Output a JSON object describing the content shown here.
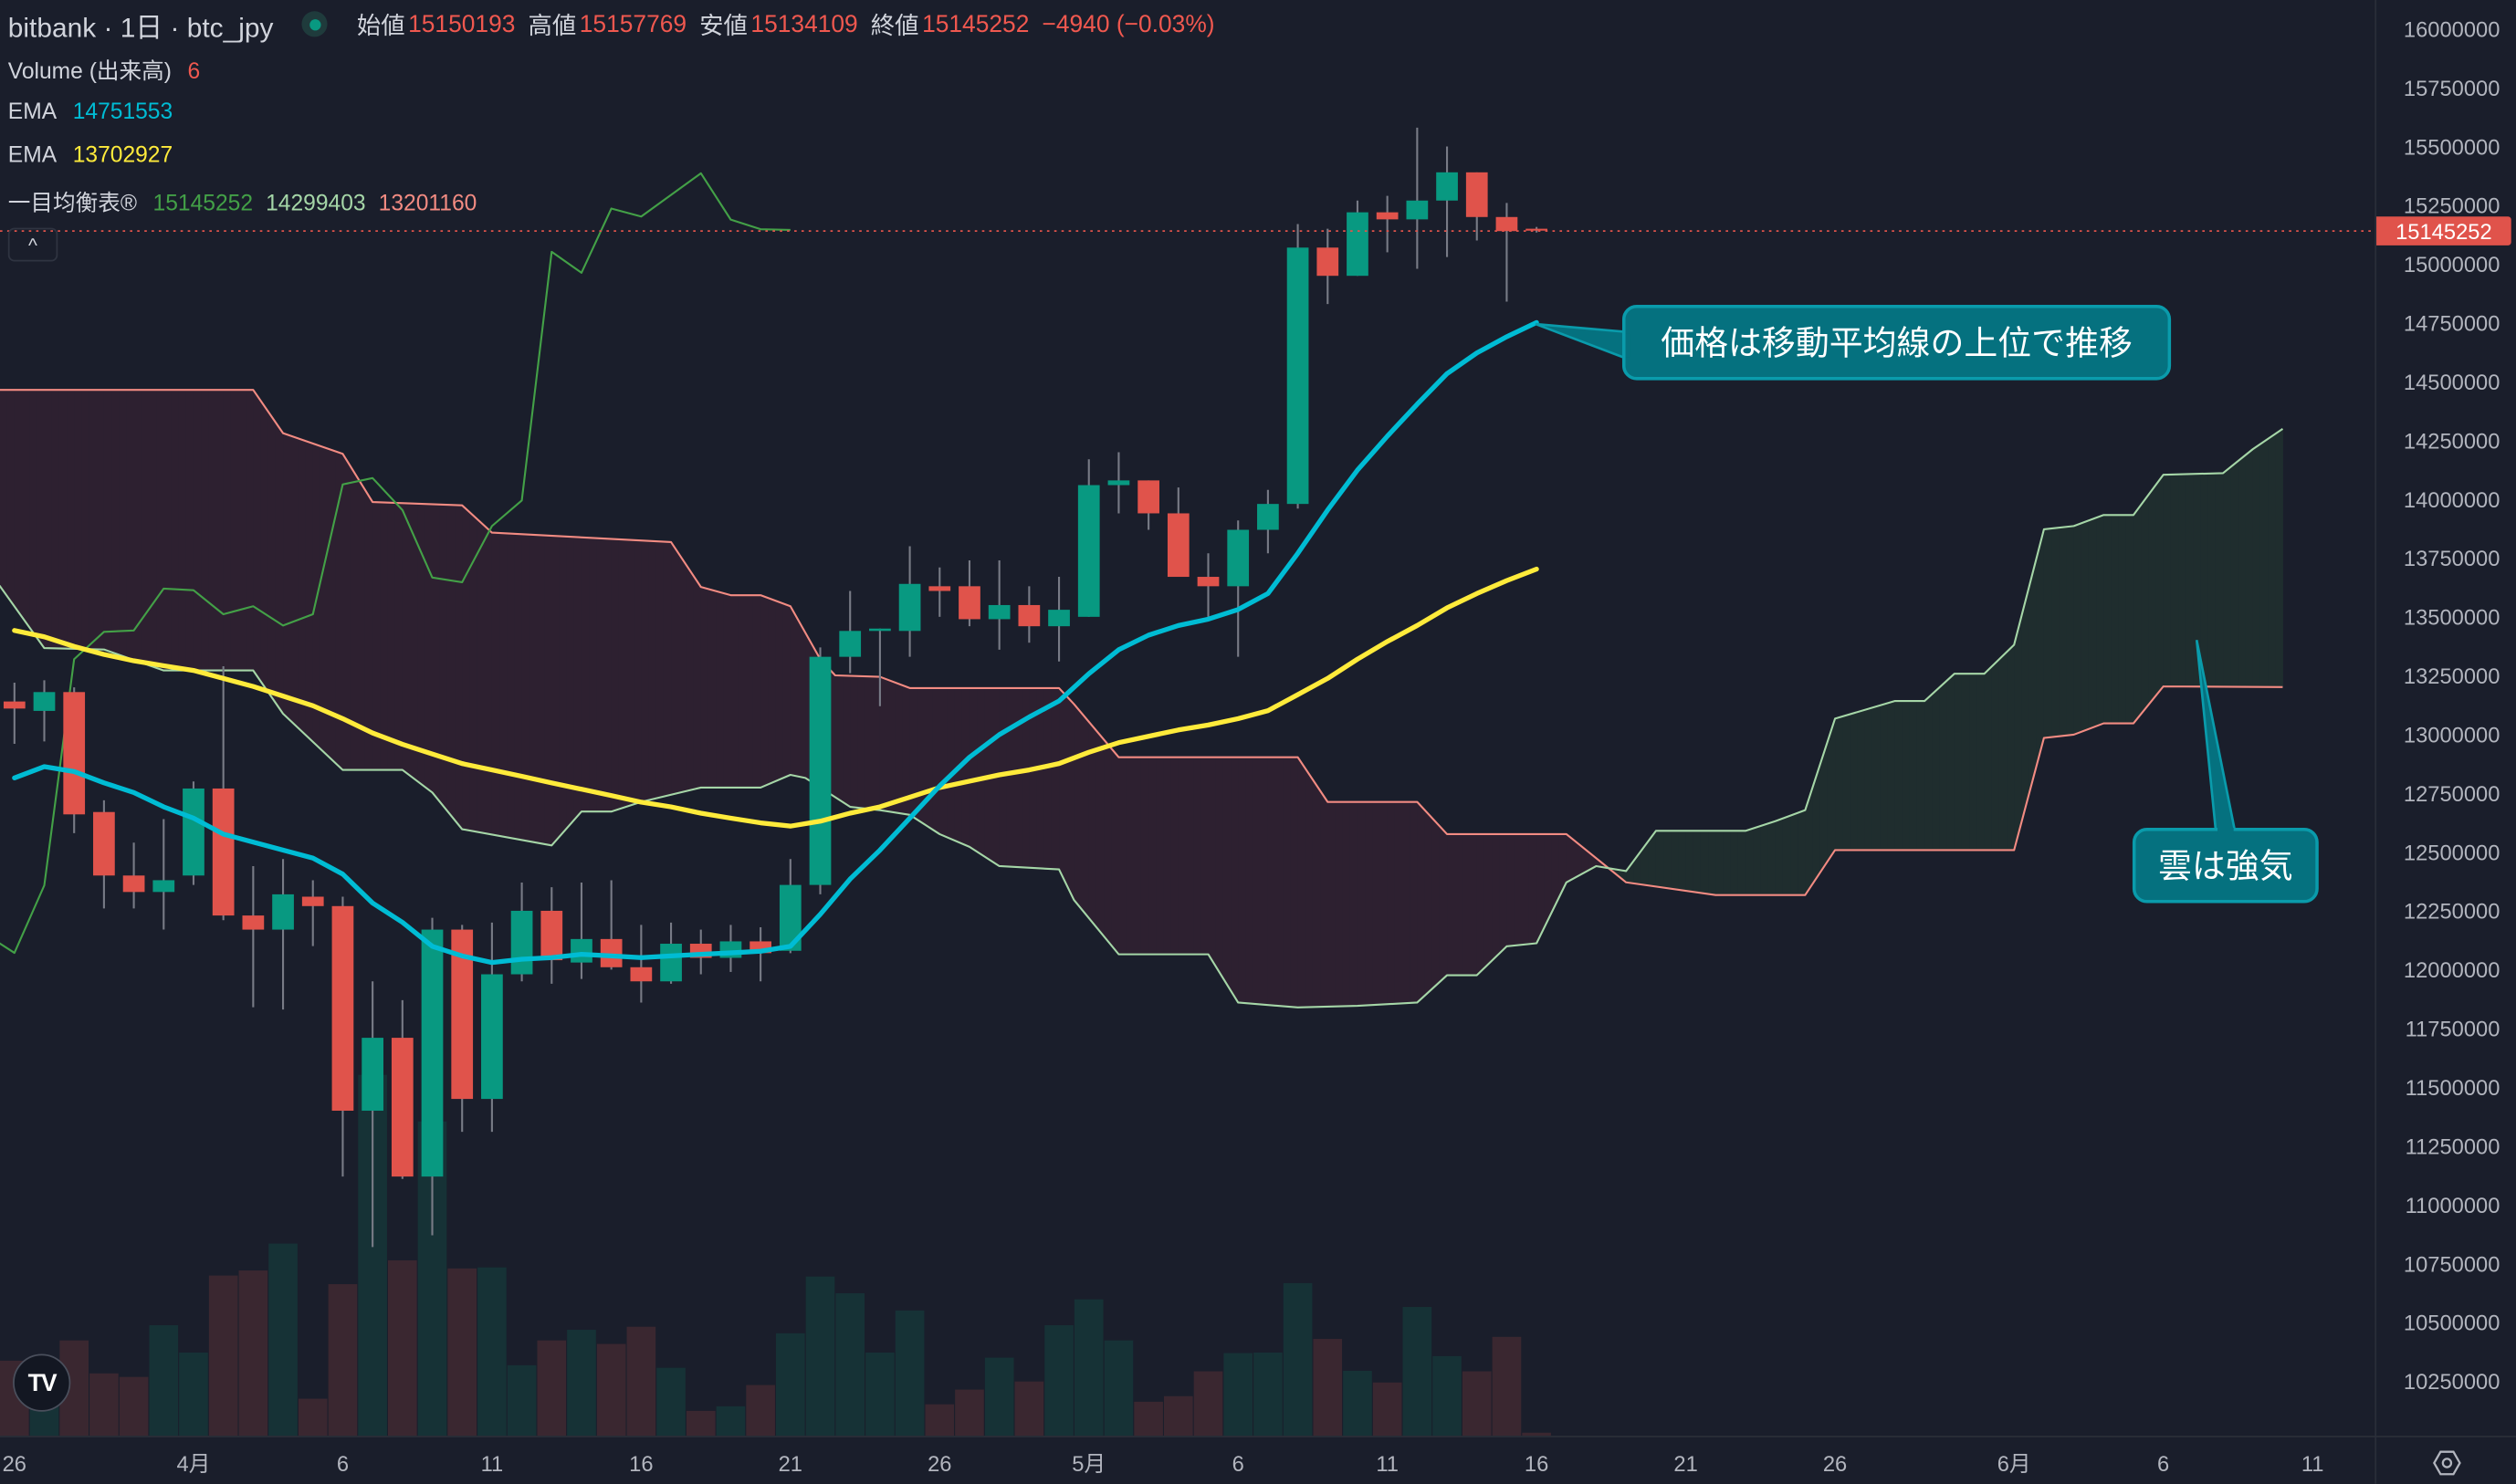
{
  "header": {
    "symbol_title": "bitbank · 1日 · btc_jpy",
    "open_label": "始値",
    "open_value": "15150193",
    "high_label": "高値",
    "high_value": "15157769",
    "low_label": "安値",
    "low_value": "15134109",
    "close_label": "終値",
    "close_value": "15145252",
    "change": "−4940 (−0.03%)"
  },
  "legend": {
    "volume_label": "Volume (出来高)",
    "volume_value": "6",
    "ema1_label": "EMA",
    "ema1_value": "14751553",
    "ema2_label": "EMA",
    "ema2_value": "13702927",
    "ichimoku_label": "一目均衡表®",
    "ichimoku_lagging": "15145252",
    "ichimoku_span_a": "14299403",
    "ichimoku_span_b": "13201160"
  },
  "controls": {
    "collapse_icon": "^",
    "logo_text": "TV"
  },
  "price_tag": "15145252",
  "annotations": {
    "ema_callout": "価格は移動平均線の上位で推移",
    "cloud_callout": "雲は強気"
  },
  "colors": {
    "up": "#089981",
    "down": "#e0534b",
    "wick": "#787b86",
    "vol_up": "#163236",
    "vol_down": "#3a2730",
    "ema_fast": "#00bcd4",
    "ema_slow": "#ffeb3b",
    "span_a": "#a5d6a7",
    "span_b": "#f28b82",
    "lagging": "#43a047",
    "cloud_bear": "#2d2030",
    "cloud_bull": "#1f2d2e",
    "callout_fill": "#05717f",
    "callout_border": "#0a9bab"
  },
  "chart_data": {
    "type": "candlestick",
    "title": "bitbank · 1日 · btc_jpy",
    "ylim": [
      10100000,
      16100000
    ],
    "y_ticks": [
      16000000,
      15750000,
      15500000,
      15250000,
      15000000,
      14750000,
      14500000,
      14250000,
      14000000,
      13750000,
      13500000,
      13250000,
      13000000,
      12750000,
      12500000,
      12250000,
      12000000,
      11750000,
      11500000,
      11250000,
      11000000,
      10750000,
      10500000,
      10250000
    ],
    "x_ticks": [
      {
        "label": "26",
        "day": 0
      },
      {
        "label": "4月",
        "day": 6
      },
      {
        "label": "6",
        "day": 11
      },
      {
        "label": "11",
        "day": 16
      },
      {
        "label": "16",
        "day": 21
      },
      {
        "label": "21",
        "day": 26
      },
      {
        "label": "26",
        "day": 31
      },
      {
        "label": "5月",
        "day": 36
      },
      {
        "label": "6",
        "day": 41
      },
      {
        "label": "11",
        "day": 46
      },
      {
        "label": "16",
        "day": 51
      },
      {
        "label": "21",
        "day": 56
      },
      {
        "label": "26",
        "day": 61
      },
      {
        "label": "6月",
        "day": 67
      },
      {
        "label": "6",
        "day": 72
      },
      {
        "label": "11",
        "day": 77
      }
    ],
    "ohlc_columns": [
      "open",
      "high",
      "low",
      "close"
    ],
    "candles": [
      [
        13140000,
        13220000,
        12960000,
        13110000
      ],
      [
        13100000,
        13230000,
        12970000,
        13180000
      ],
      [
        13180000,
        13200000,
        12580000,
        12660000
      ],
      [
        12670000,
        12720000,
        12260000,
        12400000
      ],
      [
        12400000,
        12540000,
        12260000,
        12330000
      ],
      [
        12330000,
        12640000,
        12170000,
        12380000
      ],
      [
        12400000,
        12800000,
        12360000,
        12770000
      ],
      [
        12770000,
        13290000,
        12210000,
        12230000
      ],
      [
        12230000,
        12440000,
        11840000,
        12170000
      ],
      [
        12170000,
        12470000,
        11830000,
        12320000
      ],
      [
        12310000,
        12380000,
        12100000,
        12270000
      ],
      [
        12270000,
        12310000,
        11120000,
        11400000
      ],
      [
        11400000,
        11950000,
        10820000,
        11710000
      ],
      [
        11710000,
        11870000,
        11110000,
        11120000
      ],
      [
        11120000,
        12220000,
        10870000,
        12170000
      ],
      [
        12170000,
        12190000,
        11310000,
        11450000
      ],
      [
        11450000,
        12200000,
        11310000,
        11980000
      ],
      [
        11980000,
        12370000,
        11950000,
        12250000
      ],
      [
        12250000,
        12350000,
        11940000,
        12040000
      ],
      [
        12030000,
        12370000,
        11960000,
        12130000
      ],
      [
        12130000,
        12380000,
        12000000,
        12010000
      ],
      [
        12010000,
        12190000,
        11860000,
        11950000
      ],
      [
        11950000,
        12200000,
        11940000,
        12110000
      ],
      [
        12110000,
        12170000,
        11980000,
        12050000
      ],
      [
        12050000,
        12190000,
        11990000,
        12120000
      ],
      [
        12120000,
        12180000,
        11950000,
        12070000
      ],
      [
        12080000,
        12470000,
        12070000,
        12360000
      ],
      [
        12360000,
        13370000,
        12320000,
        13330000
      ],
      [
        13330000,
        13610000,
        13260000,
        13440000
      ],
      [
        13440000,
        13450000,
        13120000,
        13450000
      ],
      [
        13440000,
        13800000,
        13330000,
        13640000
      ],
      [
        13630000,
        13710000,
        13500000,
        13610000
      ],
      [
        13630000,
        13740000,
        13460000,
        13490000
      ],
      [
        13490000,
        13740000,
        13360000,
        13550000
      ],
      [
        13550000,
        13630000,
        13390000,
        13460000
      ],
      [
        13460000,
        13670000,
        13310000,
        13530000
      ],
      [
        13500000,
        14170000,
        13500000,
        14060000
      ],
      [
        14060000,
        14200000,
        13940000,
        14080000
      ],
      [
        14080000,
        14080000,
        13870000,
        13940000
      ],
      [
        13940000,
        14050000,
        13670000,
        13670000
      ],
      [
        13670000,
        13770000,
        13500000,
        13630000
      ],
      [
        13630000,
        13910000,
        13330000,
        13870000
      ],
      [
        13870000,
        14040000,
        13770000,
        13980000
      ],
      [
        13980000,
        15170000,
        13960000,
        15070000
      ],
      [
        15070000,
        15150000,
        14830000,
        14950000
      ],
      [
        14950000,
        15270000,
        14950000,
        15220000
      ],
      [
        15220000,
        15290000,
        15050000,
        15190000
      ],
      [
        15190000,
        15580000,
        14980000,
        15270000
      ],
      [
        15270000,
        15500000,
        15030000,
        15390000
      ],
      [
        15390000,
        15390000,
        15100000,
        15200000
      ],
      [
        15200000,
        15260000,
        14840000,
        15140000
      ],
      [
        15150193,
        15157769,
        15134109,
        15145252
      ]
    ],
    "volume": [
      148,
      120,
      188,
      123,
      116,
      218,
      164,
      316,
      326,
      379,
      73,
      299,
      712,
      346,
      620,
      330,
      332,
      139,
      188,
      209,
      181,
      215,
      134,
      49,
      58,
      100,
      202,
      314,
      281,
      164,
      247,
      62,
      91,
      154,
      107,
      218,
      269,
      188,
      67,
      78,
      127,
      163,
      164,
      301,
      191,
      128,
      105,
      254,
      157,
      127,
      195,
      6
    ],
    "ema_fast": [
      12815000,
      12863000,
      12842000,
      12794000,
      12753000,
      12692000,
      12644000,
      12576000,
      12542000,
      12508000,
      12474000,
      12406000,
      12283000,
      12201000,
      12099000,
      12058000,
      12030000,
      12044000,
      12051000,
      12065000,
      12058000,
      12051000,
      12058000,
      12065000,
      12071000,
      12078000,
      12099000,
      12235000,
      12385000,
      12508000,
      12644000,
      12781000,
      12903000,
      12999000,
      13074000,
      13142000,
      13258000,
      13360000,
      13422000,
      13463000,
      13490000,
      13531000,
      13599000,
      13770000,
      13954000,
      14124000,
      14268000,
      14404000,
      14534000,
      14622000,
      14691000,
      14751553
    ],
    "ema_slow": [
      13442000,
      13415000,
      13374000,
      13340000,
      13313000,
      13292000,
      13272000,
      13238000,
      13204000,
      13163000,
      13122000,
      13067000,
      13006000,
      12958000,
      12917000,
      12876000,
      12849000,
      12822000,
      12794000,
      12767000,
      12740000,
      12712000,
      12692000,
      12665000,
      12644000,
      12624000,
      12610000,
      12631000,
      12665000,
      12692000,
      12733000,
      12774000,
      12801000,
      12828000,
      12849000,
      12876000,
      12924000,
      12965000,
      12992000,
      13019000,
      13040000,
      13067000,
      13101000,
      13169000,
      13238000,
      13320000,
      13395000,
      13463000,
      13538000,
      13599000,
      13654000,
      13702927
    ],
    "span_a": [
      [
        -0.5,
        13633000
      ],
      [
        1,
        13367000
      ],
      [
        3,
        13361000
      ],
      [
        5,
        13272000
      ],
      [
        8,
        13272000
      ],
      [
        9,
        13088000
      ],
      [
        11,
        12849000
      ],
      [
        13,
        12849000
      ],
      [
        14,
        12753000
      ],
      [
        15,
        12597000
      ],
      [
        18,
        12528000
      ],
      [
        19,
        12672000
      ],
      [
        20,
        12672000
      ],
      [
        21,
        12713000
      ],
      [
        23,
        12774000
      ],
      [
        25,
        12774000
      ],
      [
        26,
        12828000
      ],
      [
        26.5,
        12815000
      ],
      [
        28,
        12692000
      ],
      [
        29,
        12678000
      ],
      [
        30,
        12658000
      ],
      [
        31,
        12576000
      ],
      [
        32,
        12522000
      ],
      [
        33,
        12440000
      ],
      [
        35,
        12426000
      ],
      [
        35.5,
        12296000
      ],
      [
        37,
        12065000
      ],
      [
        40,
        12065000
      ],
      [
        41,
        11860000
      ],
      [
        43,
        11839000
      ],
      [
        45,
        11846000
      ],
      [
        47,
        11860000
      ],
      [
        48,
        11976000
      ],
      [
        49,
        11976000
      ],
      [
        50,
        12099000
      ],
      [
        51,
        12112000
      ],
      [
        52,
        12371000
      ],
      [
        53,
        12440000
      ],
      [
        54,
        12419000
      ],
      [
        55,
        12590000
      ],
      [
        58,
        12590000
      ],
      [
        59,
        12631000
      ],
      [
        60,
        12678000
      ],
      [
        61,
        13067000
      ],
      [
        63,
        13142000
      ],
      [
        64,
        13142000
      ],
      [
        65,
        13258000
      ],
      [
        66,
        13258000
      ],
      [
        67,
        13381000
      ],
      [
        68,
        13872000
      ],
      [
        69,
        13886000
      ],
      [
        70,
        13933000
      ],
      [
        71,
        13933000
      ],
      [
        72,
        14104000
      ],
      [
        74,
        14111000
      ],
      [
        75,
        14213000
      ],
      [
        76,
        14299403
      ]
    ],
    "span_b": [
      [
        -0.5,
        14465000
      ],
      [
        8,
        14465000
      ],
      [
        9,
        14281000
      ],
      [
        11,
        14193000
      ],
      [
        12,
        13988000
      ],
      [
        15,
        13974000
      ],
      [
        16,
        13858000
      ],
      [
        22,
        13818000
      ],
      [
        23,
        13627000
      ],
      [
        24,
        13592000
      ],
      [
        25,
        13592000
      ],
      [
        26,
        13545000
      ],
      [
        27,
        13320000
      ],
      [
        27.5,
        13251000
      ],
      [
        29,
        13245000
      ],
      [
        30,
        13197000
      ],
      [
        35,
        13197000
      ],
      [
        35.5,
        13129000
      ],
      [
        37,
        12903000
      ],
      [
        43,
        12903000
      ],
      [
        44,
        12713000
      ],
      [
        47,
        12713000
      ],
      [
        48,
        12576000
      ],
      [
        52,
        12576000
      ],
      [
        54,
        12371000
      ],
      [
        57,
        12317000
      ],
      [
        60,
        12317000
      ],
      [
        61,
        12508000
      ],
      [
        67,
        12508000
      ],
      [
        68,
        12985000
      ],
      [
        69,
        12999000
      ],
      [
        70,
        13047000
      ],
      [
        71,
        13047000
      ],
      [
        72,
        13204000
      ],
      [
        76,
        13201160
      ]
    ],
    "lagging": [
      [
        -0.5,
        12112000
      ],
      [
        0,
        12071000
      ],
      [
        1,
        12358000
      ],
      [
        2,
        13320000
      ],
      [
        3,
        13436000
      ],
      [
        4,
        13442000
      ],
      [
        5,
        13620000
      ],
      [
        6,
        13613000
      ],
      [
        7,
        13511000
      ],
      [
        8,
        13545000
      ],
      [
        9,
        13463000
      ],
      [
        10,
        13511000
      ],
      [
        11,
        14063000
      ],
      [
        12,
        14090000
      ],
      [
        13,
        13954000
      ],
      [
        14,
        13667000
      ],
      [
        15,
        13647000
      ],
      [
        16,
        13886000
      ],
      [
        17,
        13995000
      ],
      [
        18,
        15052000
      ],
      [
        19,
        14963000
      ],
      [
        20,
        15236000
      ],
      [
        21,
        15202000
      ],
      [
        23,
        15386000
      ],
      [
        24,
        15189000
      ],
      [
        25,
        15148000
      ],
      [
        26,
        15145252
      ]
    ],
    "last_price": 15145252
  }
}
